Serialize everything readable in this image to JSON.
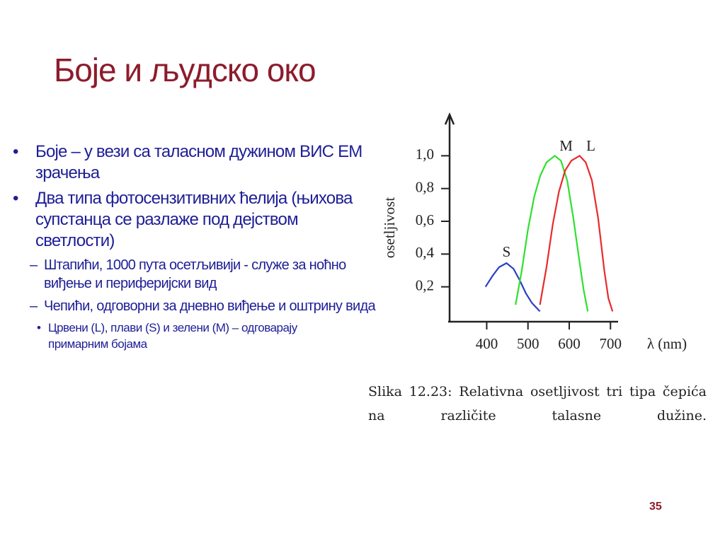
{
  "title": "Боје и људско око",
  "bullets": [
    {
      "text": "Боје – у вези са таласном дужином ВИС ЕМ зрачења",
      "children": []
    },
    {
      "text": "Два типа фотосензитивних ћелија (њихова супстанца се разлаже под дејством светлости)",
      "children": [
        {
          "text": "Штапићи, 1000 пута осетљивији  - служе за ноћно виђење и периферијски вид",
          "children": []
        },
        {
          "text": "Чепићи, одговорни за дневно виђење и оштрину вида",
          "children": [
            {
              "text": "Црвени (L), плави (S) и зелени (M) – одговарају примарним бојама",
              "children": []
            }
          ]
        }
      ]
    }
  ],
  "chart_data": {
    "type": "line",
    "x_label": "λ (nm)",
    "y_label": "osetljivost",
    "xlim": [
      310,
      715
    ],
    "ylim": [
      0,
      1.2
    ],
    "xticks": [
      400,
      500,
      600,
      700
    ],
    "yticks": [
      {
        "value": 0.2,
        "label": "0,2"
      },
      {
        "value": 0.4,
        "label": "0,4"
      },
      {
        "value": 0.6,
        "label": "0,6"
      },
      {
        "value": 0.8,
        "label": "0,8"
      },
      {
        "value": 1.0,
        "label": "1,0"
      }
    ],
    "series": [
      {
        "name": "S",
        "color": "#2a3fc4",
        "x": [
          397,
          415,
          430,
          448,
          465,
          480,
          495,
          510,
          529
        ],
        "values": [
          0.2,
          0.27,
          0.32,
          0.345,
          0.31,
          0.24,
          0.16,
          0.1,
          0.05
        ]
      },
      {
        "name": "M",
        "color": "#2ee02e",
        "x": [
          470,
          485,
          500,
          515,
          530,
          545,
          565,
          580,
          595,
          610,
          625,
          635,
          645
        ],
        "values": [
          0.09,
          0.3,
          0.55,
          0.75,
          0.88,
          0.96,
          1.0,
          0.97,
          0.85,
          0.62,
          0.35,
          0.18,
          0.05
        ]
      },
      {
        "name": "L",
        "color": "#e82a2a",
        "x": [
          529,
          545,
          560,
          575,
          590,
          605,
          625,
          640,
          655,
          670,
          685,
          695,
          705
        ],
        "values": [
          0.09,
          0.32,
          0.58,
          0.78,
          0.91,
          0.97,
          1.0,
          0.96,
          0.85,
          0.62,
          0.3,
          0.13,
          0.05
        ]
      }
    ]
  },
  "caption": "Slika 12.23: Relativna osetljivost tri tipa čepića na različite talasne dužine.",
  "page_number": "35"
}
